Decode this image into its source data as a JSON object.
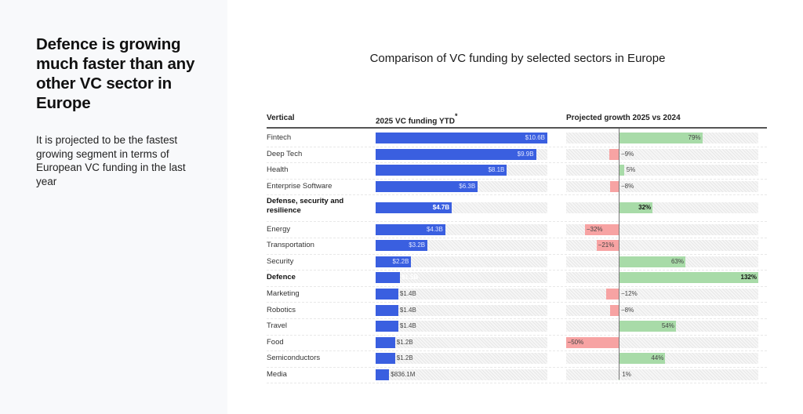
{
  "left_panel": {
    "headline": "Defence is growing much faster than any other VC sector in Europe",
    "subtext": "It is projected to be the fastest growing segment in terms of European VC funding in the last year"
  },
  "chart_data": {
    "type": "table",
    "title": "Comparison of VC funding by selected sectors in Europe",
    "columns": [
      "Vertical",
      "2025 VC funding YTD",
      "Projected growth 2025 vs 2024"
    ],
    "funding_header_marker": "*",
    "funding_unit": "USD billions",
    "growth_unit": "percent",
    "colors": {
      "funding": "#3a5fe0",
      "growth_positive": "#a8dba8",
      "growth_negative": "#f7a3a3"
    },
    "rows": [
      {
        "vertical": "Fintech",
        "funding": 10.6,
        "funding_label": "$10.6B",
        "growth": 79,
        "growth_label": "79%",
        "bold": false
      },
      {
        "vertical": "Deep Tech",
        "funding": 9.9,
        "funding_label": "$9.9B",
        "growth": -9,
        "growth_label": "−9%",
        "bold": false
      },
      {
        "vertical": "Health",
        "funding": 8.1,
        "funding_label": "$8.1B",
        "growth": 5,
        "growth_label": "5%",
        "bold": false
      },
      {
        "vertical": "Enterprise Software",
        "funding": 6.3,
        "funding_label": "$6.3B",
        "growth": -8,
        "growth_label": "−8%",
        "bold": false
      },
      {
        "vertical": "Defense, security and resilience",
        "funding": 4.7,
        "funding_label": "$4.7B",
        "growth": 32,
        "growth_label": "32%",
        "bold": true
      },
      {
        "vertical": "Energy",
        "funding": 4.3,
        "funding_label": "$4.3B",
        "growth": -32,
        "growth_label": "−32%",
        "bold": false
      },
      {
        "vertical": "Transportation",
        "funding": 3.2,
        "funding_label": "$3.2B",
        "growth": -21,
        "growth_label": "−21%",
        "bold": false
      },
      {
        "vertical": "Security",
        "funding": 2.2,
        "funding_label": "$2.2B",
        "growth": 63,
        "growth_label": "63%",
        "bold": false
      },
      {
        "vertical": "Defence",
        "funding": 1.5,
        "funding_label": "$1.5B",
        "growth": 132,
        "growth_label": "132%",
        "bold": true
      },
      {
        "vertical": "Marketing",
        "funding": 1.4,
        "funding_label": "$1.4B",
        "growth": -12,
        "growth_label": "−12%",
        "bold": false
      },
      {
        "vertical": "Robotics",
        "funding": 1.4,
        "funding_label": "$1.4B",
        "growth": -8,
        "growth_label": "−8%",
        "bold": false
      },
      {
        "vertical": "Travel",
        "funding": 1.4,
        "funding_label": "$1.4B",
        "growth": 54,
        "growth_label": "54%",
        "bold": false
      },
      {
        "vertical": "Food",
        "funding": 1.2,
        "funding_label": "$1.2B",
        "growth": -50,
        "growth_label": "−50%",
        "bold": false
      },
      {
        "vertical": "Semiconductors",
        "funding": 1.2,
        "funding_label": "$1.2B",
        "growth": 44,
        "growth_label": "44%",
        "bold": false
      },
      {
        "vertical": "Media",
        "funding": 0.8361,
        "funding_label": "$836.1M",
        "growth": 1,
        "growth_label": "1%",
        "bold": false
      }
    ]
  }
}
